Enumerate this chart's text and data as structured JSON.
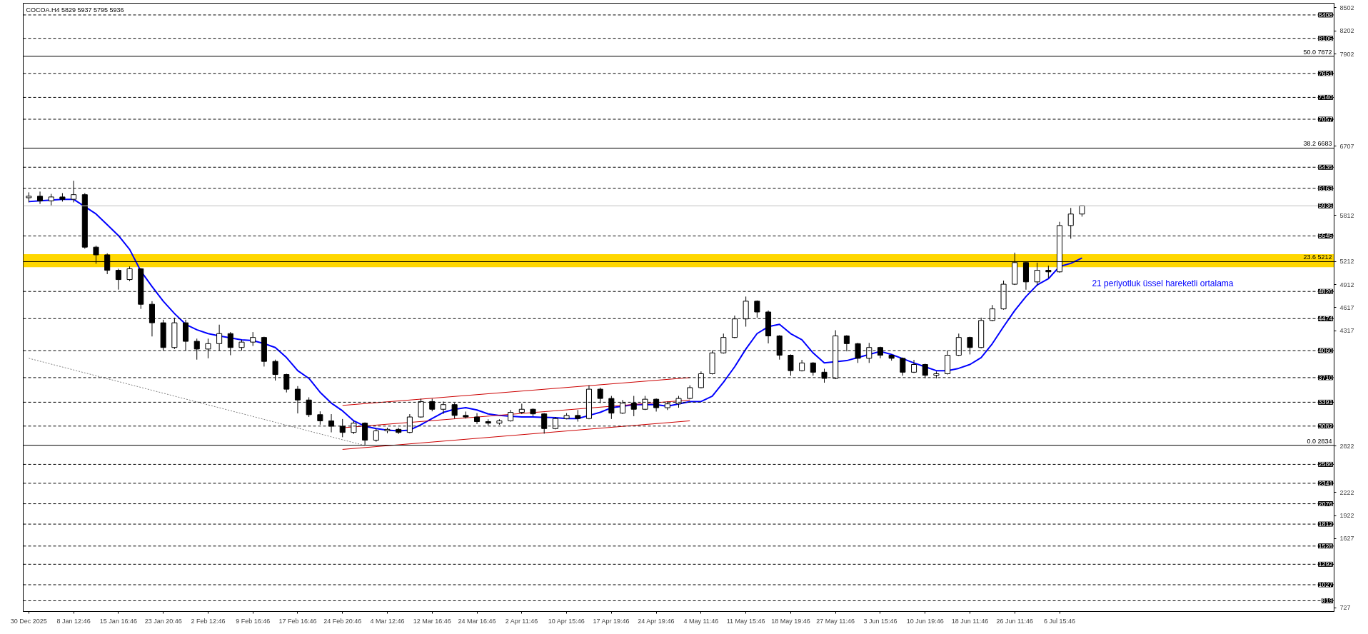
{
  "chart_data": {
    "type": "candlestick",
    "title": "COCOA.H4 5829 5937 5795 5936",
    "color": "#000000",
    "categories": [
      "30 Dec 2025",
      null,
      null,
      null,
      "8 Jan 12:46",
      null,
      null,
      null,
      "15 Jan 16:46",
      null,
      null,
      null,
      "23 Jan 20:46",
      null,
      null,
      null,
      "2 Feb 12:46",
      null,
      null,
      null,
      "9 Feb 16:46",
      null,
      null,
      null,
      "17 Feb 16:46",
      null,
      null,
      null,
      "24 Feb 20:46",
      null,
      null,
      null,
      "4 Mar 12:46",
      null,
      null,
      null,
      "12 Mar 16:46",
      null,
      null,
      null,
      "24 Mar 16:46",
      null,
      null,
      null,
      "2 Apr 11:46",
      null,
      null,
      null,
      "10 Apr 15:46",
      null,
      null,
      null,
      "17 Apr 19:46",
      null,
      null,
      null,
      "24 Apr 19:46",
      null,
      null,
      null,
      "4 May 11:46",
      null,
      null,
      null,
      "11 May 15:46",
      null,
      null,
      null,
      "18 May 19:46",
      null,
      null,
      null,
      "27 May 11:46",
      null,
      null,
      null,
      "3 Jun 15:46",
      null,
      null,
      null,
      "10 Jun 19:46",
      null,
      null,
      null,
      "18 Jun 11:46",
      null,
      null,
      null,
      "26 Jun 11:46",
      null,
      null,
      null,
      "6 Jul 15:46",
      null,
      null,
      null,
      null,
      null,
      null,
      null,
      null,
      null,
      null,
      null,
      null,
      null,
      null,
      null,
      null,
      null,
      null,
      null,
      null,
      null,
      null,
      null,
      null
    ],
    "ohlc": [
      [
        6040,
        6110,
        5980,
        6060
      ],
      [
        6060,
        6120,
        5960,
        6000
      ],
      [
        6000,
        6090,
        5940,
        6050
      ],
      [
        6050,
        6100,
        5990,
        6020
      ],
      [
        6020,
        6260,
        5980,
        6080
      ],
      [
        6080,
        6100,
        5380,
        5400
      ],
      [
        5400,
        5420,
        5185,
        5300
      ],
      [
        5300,
        5320,
        5050,
        5100
      ],
      [
        5100,
        5120,
        4850,
        4980
      ],
      [
        4980,
        5150,
        4960,
        5120
      ],
      [
        5120,
        5130,
        4600,
        4660
      ],
      [
        4660,
        4700,
        4243,
        4420
      ],
      [
        4420,
        4460,
        4060,
        4100
      ],
      [
        4100,
        4487,
        4080,
        4420
      ],
      [
        4420,
        4460,
        4060,
        4180
      ],
      [
        4180,
        4215,
        3943,
        4080
      ],
      [
        4080,
        4215,
        3960,
        4150
      ],
      [
        4150,
        4396,
        4060,
        4280
      ],
      [
        4280,
        4300,
        4000,
        4100
      ],
      [
        4100,
        4200,
        4060,
        4170
      ],
      [
        4170,
        4300,
        4120,
        4230
      ],
      [
        4230,
        4240,
        3853,
        3920
      ],
      [
        3920,
        3943,
        3672,
        3750
      ],
      [
        3750,
        3760,
        3518,
        3560
      ],
      [
        3560,
        3600,
        3246,
        3420
      ],
      [
        3420,
        3455,
        3200,
        3230
      ],
      [
        3230,
        3273,
        3100,
        3150
      ],
      [
        3150,
        3237,
        3001,
        3080
      ],
      [
        3080,
        3174,
        2938,
        3000
      ],
      [
        3000,
        3150,
        2980,
        3120
      ],
      [
        3120,
        3130,
        2840,
        2900
      ],
      [
        2900,
        3050,
        2880,
        3020
      ],
      [
        3020,
        3060,
        2990,
        3040
      ],
      [
        3040,
        3060,
        2980,
        3000
      ],
      [
        3000,
        3237,
        2990,
        3200
      ],
      [
        3200,
        3437,
        3190,
        3400
      ],
      [
        3400,
        3437,
        3273,
        3300
      ],
      [
        3300,
        3400,
        3240,
        3360
      ],
      [
        3360,
        3380,
        3180,
        3220
      ],
      [
        3220,
        3270,
        3180,
        3200
      ],
      [
        3200,
        3250,
        3110,
        3140
      ],
      [
        3140,
        3170,
        3090,
        3120
      ],
      [
        3120,
        3170,
        3100,
        3150
      ],
      [
        3150,
        3290,
        3140,
        3260
      ],
      [
        3260,
        3372,
        3237,
        3300
      ],
      [
        3300,
        3310,
        3210,
        3240
      ],
      [
        3240,
        3250,
        2984,
        3050
      ],
      [
        3050,
        3200,
        3040,
        3180
      ],
      [
        3180,
        3250,
        3170,
        3220
      ],
      [
        3220,
        3290,
        3140,
        3180
      ],
      [
        3180,
        3610,
        3170,
        3560
      ],
      [
        3560,
        3580,
        3380,
        3440
      ],
      [
        3440,
        3473,
        3174,
        3250
      ],
      [
        3250,
        3420,
        3240,
        3380
      ],
      [
        3380,
        3473,
        3210,
        3300
      ],
      [
        3300,
        3473,
        3290,
        3430
      ],
      [
        3430,
        3440,
        3270,
        3320
      ],
      [
        3320,
        3400,
        3290,
        3370
      ],
      [
        3370,
        3473,
        3320,
        3440
      ],
      [
        3440,
        3610,
        3430,
        3580
      ],
      [
        3580,
        3790,
        3570,
        3760
      ],
      [
        3760,
        4062,
        3750,
        4030
      ],
      [
        4030,
        4280,
        4020,
        4230
      ],
      [
        4230,
        4514,
        4220,
        4470
      ],
      [
        4470,
        4760,
        4370,
        4700
      ],
      [
        4700,
        4710,
        4487,
        4560
      ],
      [
        4560,
        4580,
        4153,
        4250
      ],
      [
        4250,
        4260,
        3943,
        4000
      ],
      [
        4000,
        4010,
        3735,
        3800
      ],
      [
        3800,
        3940,
        3790,
        3900
      ],
      [
        3900,
        3910,
        3735,
        3780
      ],
      [
        3780,
        3825,
        3644,
        3700
      ],
      [
        3700,
        4324,
        3690,
        4250
      ],
      [
        4250,
        4260,
        4050,
        4150
      ],
      [
        4150,
        4160,
        3900,
        3960
      ],
      [
        3960,
        4160,
        3900,
        4100
      ],
      [
        4100,
        4110,
        3960,
        4000
      ],
      [
        4000,
        4010,
        3930,
        3960
      ],
      [
        3960,
        3970,
        3735,
        3780
      ],
      [
        3780,
        3940,
        3770,
        3880
      ],
      [
        3880,
        3890,
        3700,
        3740
      ],
      [
        3740,
        3790,
        3700,
        3760
      ],
      [
        3760,
        4060,
        3750,
        4000
      ],
      [
        4000,
        4280,
        3990,
        4230
      ],
      [
        4230,
        4240,
        4010,
        4100
      ],
      [
        4100,
        4487,
        4090,
        4450
      ],
      [
        4450,
        4650,
        4440,
        4600
      ],
      [
        4600,
        4967,
        4590,
        4920
      ],
      [
        4920,
        5329,
        4910,
        5200
      ],
      [
        5200,
        5210,
        4849,
        4950
      ],
      [
        4950,
        5200,
        4900,
        5100
      ],
      [
        5100,
        5160,
        5000,
        5080
      ],
      [
        5080,
        5728,
        5070,
        5680
      ],
      [
        5680,
        5908,
        5510,
        5829
      ],
      [
        5829,
        5937,
        5795,
        5936
      ],
      null,
      null,
      null,
      null,
      null,
      null,
      null,
      null,
      null,
      null,
      null,
      null,
      null,
      null,
      null,
      null,
      null,
      null,
      null,
      null,
      null,
      null
    ],
    "series": [
      {
        "type": "line",
        "name": "21 periyotluk üssel hareketli ortalama",
        "color": "#0000ff",
        "values": [
          5990,
          6000,
          6010,
          6020,
          6020,
          null,
          5830,
          5690,
          5550,
          5370,
          5090,
          4890,
          4700,
          4540,
          4400,
          4330,
          4280,
          4250,
          null,
          4200,
          4190,
          4150,
          4100,
          3970,
          3800,
          3700,
          3520,
          3380,
          3280,
          3150,
          3080,
          3050,
          3030,
          3020,
          3030,
          3100,
          3180,
          3260,
          3300,
          3320,
          3290,
          3240,
          3220,
          3210,
          3200,
          3200,
          null,
          3190,
          3180,
          3180,
          3220,
          3260,
          3320,
          3340,
          3360,
          3360,
          3360,
          3340,
          3370,
          3400,
          3400,
          3470,
          3650,
          3850,
          4080,
          4280,
          4370,
          4400,
          4280,
          4200,
          4030,
          3900,
          null,
          3930,
          3970,
          4010,
          4050,
          4010,
          null,
          3900,
          3850,
          3800,
          3800,
          3830,
          3880,
          3970,
          4150,
          4370,
          4580,
          4760,
          4910,
          4990,
          5150,
          5190,
          5260,
          null,
          null,
          null,
          null,
          null,
          null,
          null,
          null,
          null,
          null,
          null,
          null,
          null,
          null,
          null,
          null,
          null,
          null,
          null,
          null,
          null,
          null
        ]
      },
      {
        "type": "line",
        "color": "#cc0000",
        "values": [
          null,
          null,
          null,
          null,
          null,
          null,
          null,
          null,
          null,
          null,
          null,
          null,
          null,
          null,
          null,
          null,
          null,
          null,
          null,
          null,
          null,
          null,
          null,
          null,
          null,
          null,
          null,
          null,
          3350,
          null,
          null,
          null,
          null,
          null,
          null,
          null,
          null,
          null,
          null,
          null,
          null,
          null,
          null,
          null,
          null,
          null,
          null,
          null,
          null,
          null,
          null,
          null,
          null,
          null,
          null,
          null,
          null,
          null,
          null,
          3710,
          null,
          null,
          null,
          null,
          null,
          null,
          null,
          null,
          null,
          null,
          null,
          null,
          null,
          null,
          null,
          null,
          null,
          null,
          null,
          null,
          null,
          null,
          null,
          null,
          null,
          null,
          null,
          null,
          null,
          null,
          null,
          null,
          null,
          null,
          null,
          null,
          null,
          null,
          null,
          null,
          null,
          null,
          null,
          null,
          null,
          null,
          null,
          null,
          null,
          null,
          null,
          null,
          null,
          null,
          null,
          null,
          null
        ]
      },
      {
        "type": "line",
        "color": "#cc0000",
        "values": [
          null,
          null,
          null,
          null,
          null,
          null,
          null,
          null,
          null,
          null,
          null,
          null,
          null,
          null,
          null,
          null,
          null,
          null,
          null,
          null,
          null,
          null,
          null,
          null,
          null,
          null,
          null,
          null,
          3060,
          null,
          null,
          null,
          null,
          null,
          null,
          null,
          null,
          null,
          null,
          null,
          null,
          null,
          null,
          null,
          null,
          null,
          null,
          null,
          null,
          null,
          null,
          null,
          null,
          null,
          null,
          null,
          null,
          null,
          null,
          3420,
          null,
          null,
          null,
          null,
          null,
          null,
          null,
          null,
          null,
          null,
          null,
          null,
          null,
          null,
          null,
          null,
          null,
          null,
          null,
          null,
          null,
          null,
          null,
          null,
          null,
          null,
          null,
          null,
          null,
          null,
          null,
          null,
          null,
          null,
          null,
          null,
          null,
          null,
          null,
          null,
          null,
          null,
          null,
          null,
          null,
          null,
          null,
          null,
          null,
          null,
          null,
          null,
          null,
          null,
          null,
          null,
          null
        ]
      },
      {
        "type": "line",
        "color": "#cc0000",
        "values": [
          null,
          null,
          null,
          null,
          null,
          null,
          null,
          null,
          null,
          null,
          null,
          null,
          null,
          null,
          null,
          null,
          null,
          null,
          null,
          null,
          null,
          null,
          null,
          null,
          null,
          null,
          null,
          null,
          2780,
          null,
          null,
          null,
          null,
          null,
          null,
          null,
          null,
          null,
          null,
          null,
          null,
          null,
          null,
          null,
          null,
          null,
          null,
          null,
          null,
          null,
          null,
          null,
          null,
          null,
          null,
          null,
          null,
          null,
          null,
          3150,
          null,
          null,
          null,
          null,
          null,
          null,
          null,
          null,
          null,
          null,
          null,
          null,
          null,
          null,
          null,
          null,
          null,
          null,
          null,
          null,
          null,
          null,
          null,
          null,
          null,
          null,
          null,
          null,
          null,
          null,
          null,
          null,
          null,
          null,
          null,
          null,
          null,
          null,
          null,
          null,
          null,
          null,
          null,
          null,
          null,
          null,
          null,
          null,
          null,
          null,
          null,
          null,
          null,
          null,
          null,
          null,
          null
        ]
      },
      {
        "type": "line",
        "color": "#808080",
        "line_style": "dotted",
        "values": [
          3960,
          null,
          null,
          null,
          null,
          null,
          null,
          null,
          null,
          null,
          null,
          null,
          null,
          null,
          null,
          null,
          null,
          null,
          null,
          null,
          null,
          null,
          null,
          null,
          null,
          null,
          null,
          null,
          null,
          null,
          2830,
          null,
          null,
          null,
          null,
          null,
          null,
          null,
          null,
          null,
          null,
          null,
          null,
          null,
          null,
          null,
          null,
          null,
          null,
          null,
          null,
          null,
          null,
          null,
          null,
          null,
          null,
          null,
          null,
          null,
          null,
          null,
          null,
          null,
          null,
          null,
          null,
          null,
          null,
          null,
          null,
          null,
          null,
          null,
          null,
          null,
          null,
          null,
          null,
          null,
          null,
          null,
          null,
          null,
          null,
          null,
          null,
          null,
          null,
          null,
          null,
          null,
          null,
          null,
          null,
          null,
          null,
          null,
          null,
          null,
          null,
          null,
          null,
          null,
          null,
          null,
          null,
          null,
          null,
          null,
          null,
          null,
          null,
          null,
          null,
          null,
          null
        ]
      }
    ],
    "ylim": [
      680,
      8560
    ],
    "yticks": [
      8502,
      8202,
      7902,
      6707,
      5812,
      5212,
      4912,
      4617,
      4317,
      2822,
      2222,
      1922,
      1627,
      727
    ],
    "ref_lines": [
      {
        "axis": "y",
        "value": 8408,
        "label": "8408",
        "line_style": "dashed",
        "color": "#000000"
      },
      {
        "axis": "y",
        "value": 8105,
        "label": "8105",
        "line_style": "dashed",
        "color": "#000000"
      },
      {
        "axis": "y",
        "value": 7872,
        "label": "50.0 7872",
        "line_style": "solid",
        "color": "#000000"
      },
      {
        "axis": "y",
        "value": 7651,
        "label": "7651",
        "line_style": "dashed",
        "color": "#000000"
      },
      {
        "axis": "y",
        "value": 7340,
        "label": "7340",
        "line_style": "dashed",
        "color": "#000000"
      },
      {
        "axis": "y",
        "value": 7057,
        "label": "7057",
        "line_style": "dashed",
        "color": "#000000"
      },
      {
        "axis": "y",
        "value": 6683,
        "label": "38.2 6683",
        "line_style": "solid",
        "color": "#000000"
      },
      {
        "axis": "y",
        "value": 6435,
        "label": "6435",
        "line_style": "dashed",
        "color": "#000000"
      },
      {
        "axis": "y",
        "value": 6163,
        "label": "6163",
        "line_style": "dashed",
        "color": "#000000"
      },
      {
        "axis": "y",
        "value": 5936,
        "label": "5936",
        "line_style": "solid",
        "color": "#c0c0c0"
      },
      {
        "axis": "y",
        "value": 5545,
        "label": "5545",
        "line_style": "dashed",
        "color": "#000000"
      },
      {
        "axis": "y",
        "value": 5212,
        "label": "23.6 5212",
        "line_style": "solid",
        "color": "#000000"
      },
      {
        "axis": "y",
        "value": 4826,
        "label": "4826",
        "line_style": "dashed",
        "color": "#000000"
      },
      {
        "axis": "y",
        "value": 4474,
        "label": "4474",
        "line_style": "dashed",
        "color": "#000000"
      },
      {
        "axis": "y",
        "value": 4060,
        "label": "4060",
        "line_style": "dashed",
        "color": "#000000"
      },
      {
        "axis": "y",
        "value": 3710,
        "label": "3710",
        "line_style": "dashed",
        "color": "#000000"
      },
      {
        "axis": "y",
        "value": 3391,
        "label": "3391",
        "line_style": "dashed",
        "color": "#000000"
      },
      {
        "axis": "y",
        "value": 3082,
        "label": "3082",
        "line_style": "dashed",
        "color": "#000000"
      },
      {
        "axis": "y",
        "value": 2834,
        "label": "0.0 2834",
        "line_style": "solid",
        "color": "#000000"
      },
      {
        "axis": "y",
        "value": 2586,
        "label": "2586",
        "line_style": "dashed",
        "color": "#000000"
      },
      {
        "axis": "y",
        "value": 2341,
        "label": "2341",
        "line_style": "dashed",
        "color": "#000000"
      },
      {
        "axis": "y",
        "value": 2076,
        "label": "2076",
        "line_style": "dashed",
        "color": "#000000"
      },
      {
        "axis": "y",
        "value": 1812,
        "label": "1812",
        "line_style": "dashed",
        "color": "#000000"
      },
      {
        "axis": "y",
        "value": 1528,
        "label": "1528",
        "line_style": "dashed",
        "color": "#000000"
      },
      {
        "axis": "y",
        "value": 1292,
        "label": "1292",
        "line_style": "dashed",
        "color": "#000000"
      },
      {
        "axis": "y",
        "value": 1027,
        "label": "1027",
        "line_style": "dashed",
        "color": "#000000"
      },
      {
        "axis": "y",
        "value": 819,
        "label": "819",
        "line_style": "dashed",
        "color": "#000000"
      }
    ],
    "bands": [
      {
        "axis": "y",
        "from": 5140,
        "to": 5310,
        "color": "#ffd700"
      }
    ],
    "grid": false
  }
}
